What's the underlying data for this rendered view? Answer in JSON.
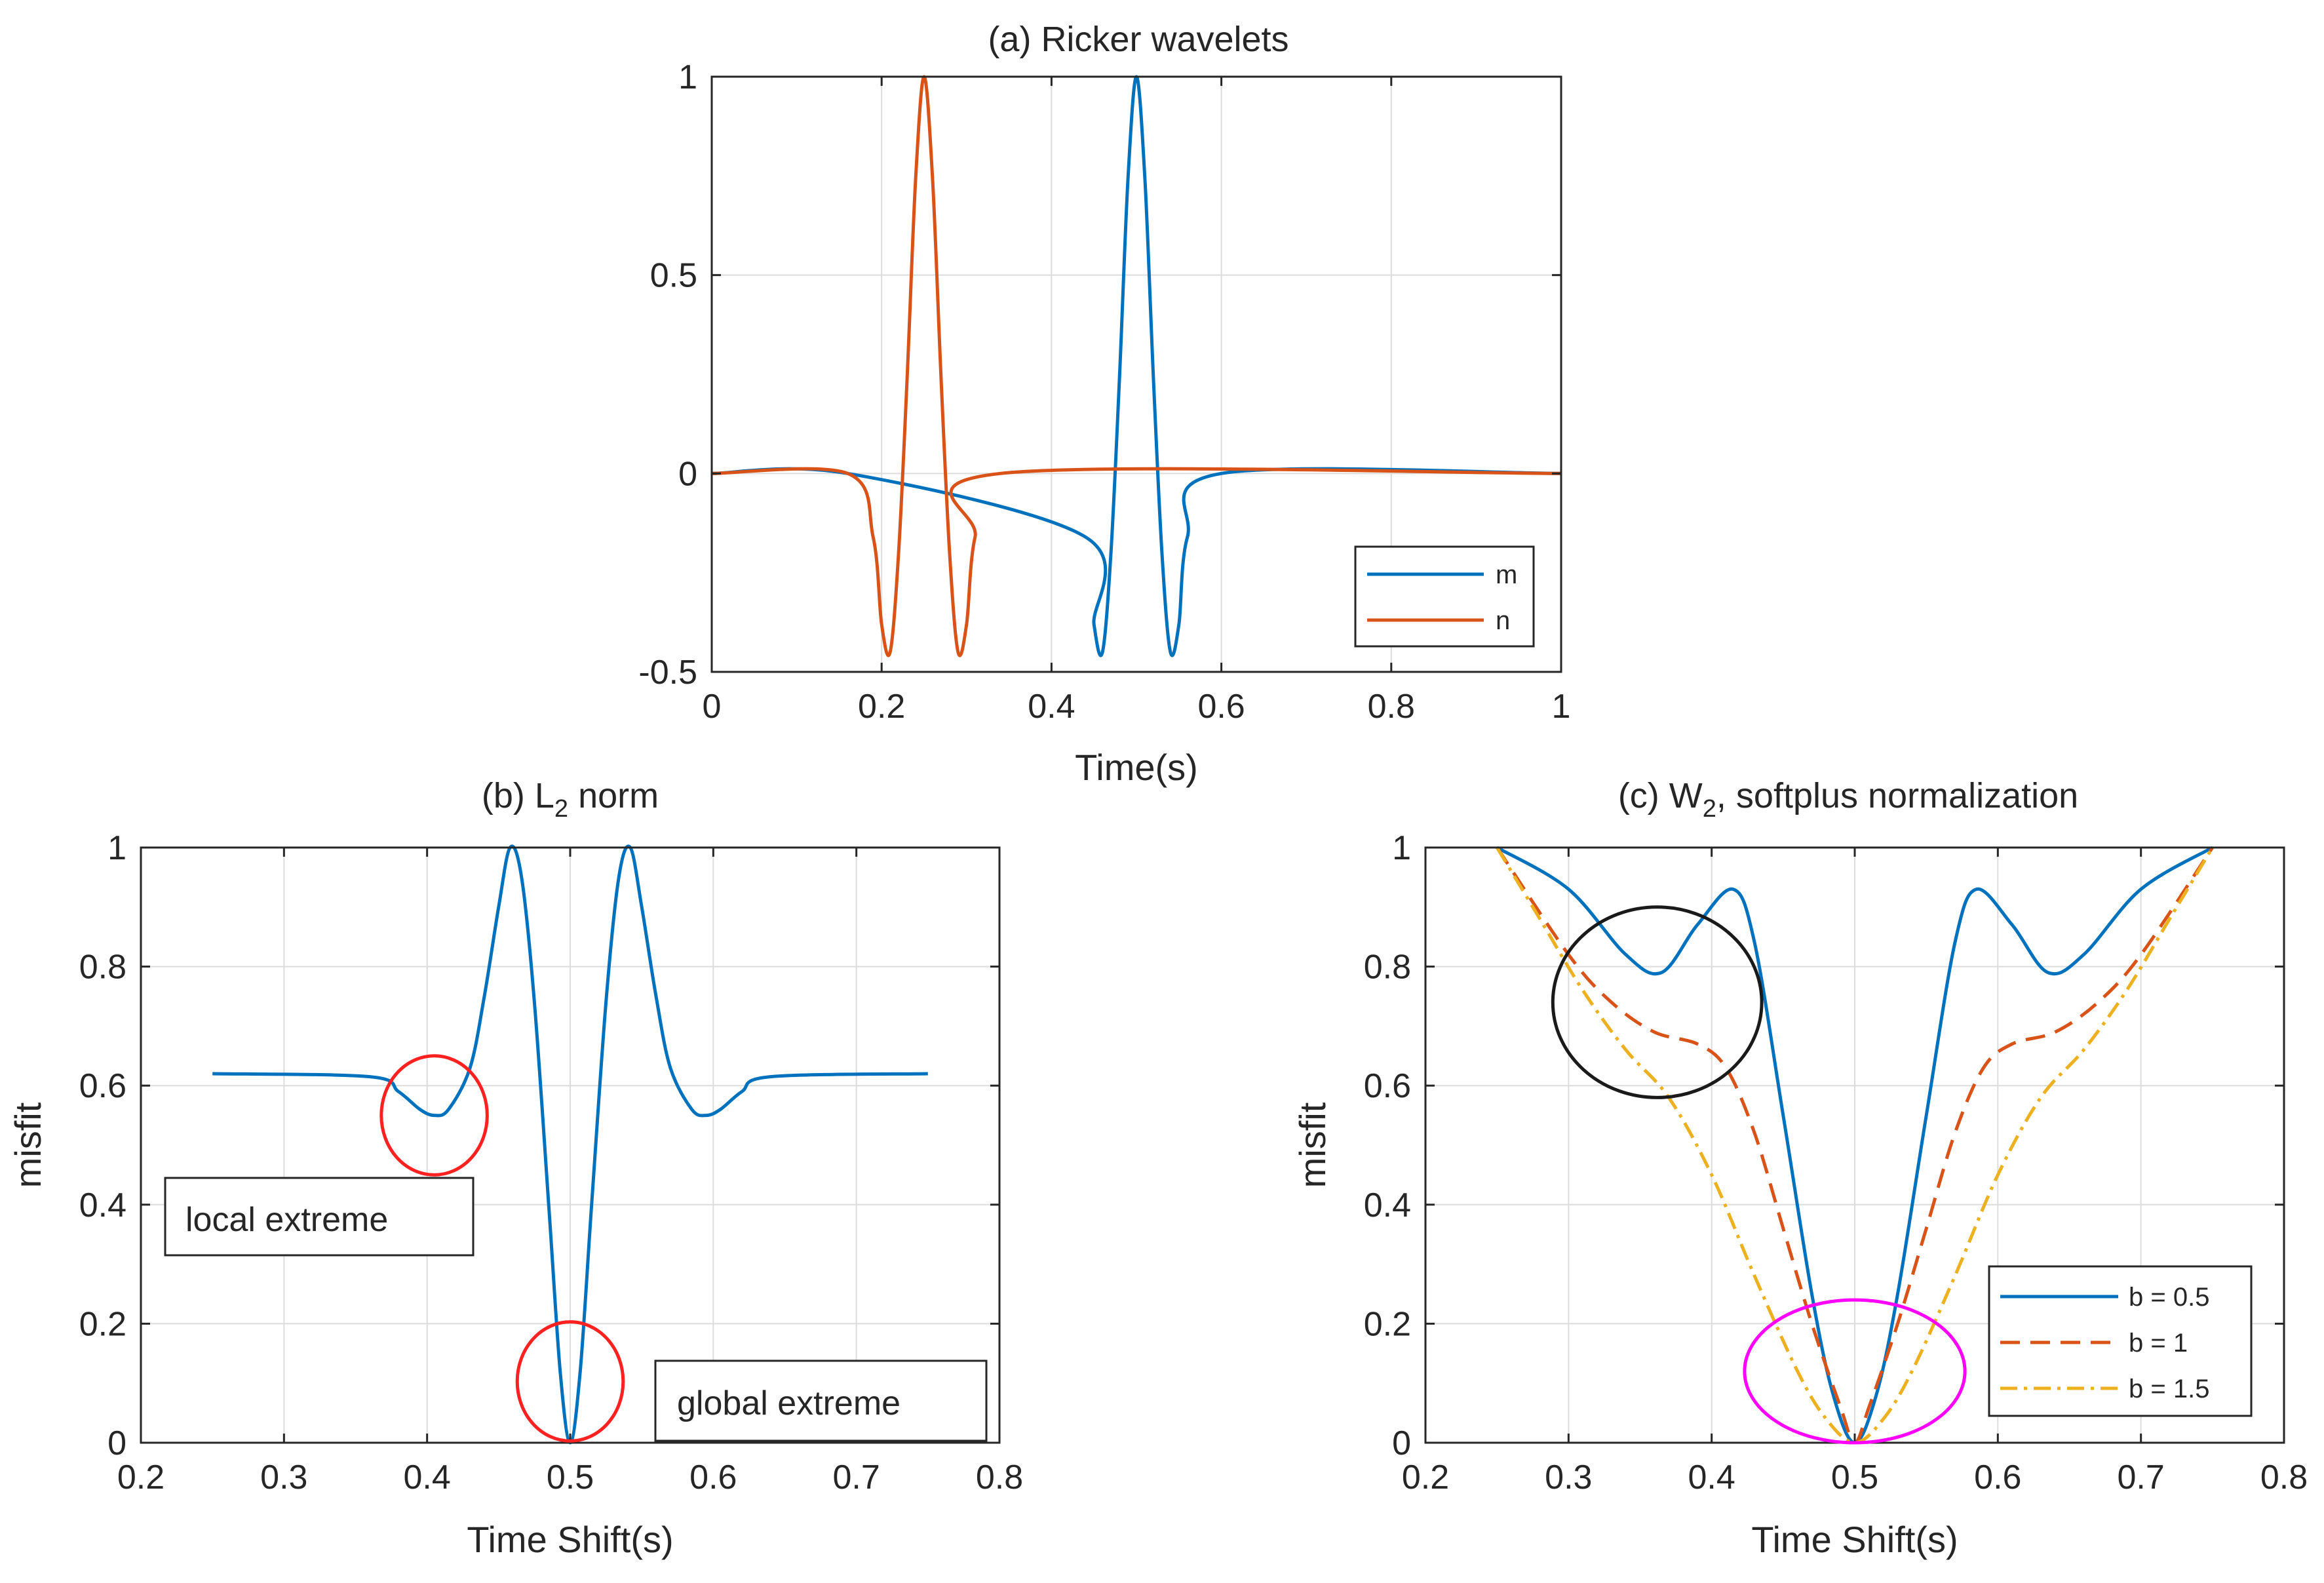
{
  "colors": {
    "blue": "#0072BD",
    "orange": "#D95319",
    "yellow": "#EDB120",
    "red": "#FF2020",
    "black": "#1a1a1a",
    "magenta": "#FF00FF",
    "axis": "#262626",
    "grid": "#dcdcdc"
  },
  "chart_data": [
    {
      "id": "a",
      "type": "line",
      "title": "(a) Ricker wavelets",
      "xlabel": "Time(s)",
      "ylabel": "",
      "xlim": [
        0,
        1
      ],
      "ylim": [
        -0.5,
        1
      ],
      "xticks": [
        0,
        0.2,
        0.4,
        0.6,
        0.8,
        1
      ],
      "xtick_labels": [
        "0",
        "0.2",
        "0.4",
        "0.6",
        "0.8",
        "1"
      ],
      "yticks": [
        -0.5,
        0,
        0.5,
        1
      ],
      "ytick_labels": [
        "-0.5",
        "0",
        "0.5",
        "1"
      ],
      "grid": true,
      "legend_position": "bottom-right",
      "series": [
        {
          "name": "m",
          "color": "blue",
          "style": "solid",
          "x": [
            0,
            0.16,
            0.44,
            0.45,
            0.46,
            0.47,
            0.48,
            0.49,
            0.5,
            0.51,
            0.52,
            0.53,
            0.54,
            0.55,
            0.56,
            0.6,
            1
          ],
          "y": [
            0,
            0,
            -0.16,
            -0.38,
            -0.45,
            -0.2,
            0.24,
            0.74,
            1,
            0.74,
            0.24,
            -0.2,
            -0.45,
            -0.38,
            -0.16,
            0,
            0
          ]
        },
        {
          "name": "n",
          "color": "orange",
          "style": "solid",
          "x": [
            0,
            0.16,
            0.19,
            0.2,
            0.21,
            0.22,
            0.23,
            0.24,
            0.25,
            0.26,
            0.27,
            0.28,
            0.29,
            0.3,
            0.31,
            0.34,
            1
          ],
          "y": [
            0,
            0,
            -0.16,
            -0.38,
            -0.45,
            -0.2,
            0.24,
            0.74,
            1,
            0.74,
            0.24,
            -0.2,
            -0.45,
            -0.38,
            -0.16,
            0,
            0
          ]
        }
      ]
    },
    {
      "id": "b",
      "type": "line",
      "title": "(b) L",
      "title_sub": "2",
      "title_rest": " norm",
      "xlabel": "Time Shift(s)",
      "ylabel": "misfit",
      "xlim": [
        0.2,
        0.8
      ],
      "ylim": [
        0,
        1
      ],
      "xticks": [
        0.2,
        0.3,
        0.4,
        0.5,
        0.6,
        0.7,
        0.8
      ],
      "xtick_labels": [
        "0.2",
        "0.3",
        "0.4",
        "0.5",
        "0.6",
        "0.7",
        "0.8"
      ],
      "yticks": [
        0,
        0.2,
        0.4,
        0.6,
        0.8,
        1
      ],
      "ytick_labels": [
        "0",
        "0.2",
        "0.4",
        "0.6",
        "0.8",
        "1"
      ],
      "grid": true,
      "series": [
        {
          "name": "L2",
          "color": "blue",
          "style": "solid",
          "x": [
            0.25,
            0.36,
            0.38,
            0.395,
            0.405,
            0.415,
            0.43,
            0.44,
            0.45,
            0.458,
            0.466,
            0.475,
            0.485,
            0.493,
            0.5,
            0.507,
            0.515,
            0.525,
            0.534,
            0.542,
            0.55,
            0.56,
            0.57,
            0.585,
            0.595,
            0.605,
            0.62,
            0.64,
            0.75
          ],
          "y": [
            0.62,
            0.615,
            0.59,
            0.56,
            0.55,
            0.56,
            0.63,
            0.75,
            0.9,
            1,
            0.95,
            0.74,
            0.4,
            0.12,
            0,
            0.12,
            0.4,
            0.74,
            0.95,
            1,
            0.9,
            0.75,
            0.63,
            0.56,
            0.55,
            0.56,
            0.59,
            0.615,
            0.62
          ]
        }
      ],
      "annotations": [
        {
          "text": "local extreme",
          "shape": "box"
        },
        {
          "text": "global extreme",
          "shape": "box"
        },
        {
          "shape": "ellipse",
          "cx": 0.405,
          "cy": 0.55,
          "rx": 0.037,
          "ry": 0.1,
          "color": "red"
        },
        {
          "shape": "ellipse",
          "cx": 0.5,
          "cy": 0.103,
          "rx": 0.037,
          "ry": 0.1,
          "color": "red"
        }
      ]
    },
    {
      "id": "c",
      "type": "line",
      "title": "(c) W",
      "title_sub": "2",
      "title_rest": ", softplus normalization",
      "xlabel": "Time Shift(s)",
      "ylabel": "misfit",
      "xlim": [
        0.2,
        0.8
      ],
      "ylim": [
        0,
        1
      ],
      "xticks": [
        0.2,
        0.3,
        0.4,
        0.5,
        0.6,
        0.7,
        0.8
      ],
      "xtick_labels": [
        "0.2",
        "0.3",
        "0.4",
        "0.5",
        "0.6",
        "0.7",
        "0.8"
      ],
      "yticks": [
        0,
        0.2,
        0.4,
        0.6,
        0.8,
        1
      ],
      "ytick_labels": [
        "0",
        "0.2",
        "0.4",
        "0.6",
        "0.8",
        "1"
      ],
      "grid": true,
      "legend_position": "bottom-right",
      "series": [
        {
          "name": "b = 0.5",
          "color": "blue",
          "style": "solid",
          "x": [
            0.25,
            0.3,
            0.34,
            0.365,
            0.39,
            0.415,
            0.43,
            0.45,
            0.47,
            0.485,
            0.5,
            0.515,
            0.53,
            0.55,
            0.57,
            0.585,
            0.61,
            0.635,
            0.66,
            0.7,
            0.75
          ],
          "y": [
            1,
            0.93,
            0.82,
            0.79,
            0.87,
            0.93,
            0.84,
            0.55,
            0.25,
            0.08,
            0,
            0.08,
            0.25,
            0.55,
            0.84,
            0.93,
            0.87,
            0.79,
            0.82,
            0.93,
            1
          ]
        },
        {
          "name": "b = 1",
          "color": "orange",
          "style": "dashed",
          "x": [
            0.25,
            0.3,
            0.33,
            0.36,
            0.39,
            0.41,
            0.43,
            0.45,
            0.47,
            0.49,
            0.5,
            0.51,
            0.53,
            0.55,
            0.57,
            0.59,
            0.61,
            0.64,
            0.67,
            0.7,
            0.75
          ],
          "y": [
            1,
            0.82,
            0.74,
            0.69,
            0.67,
            0.63,
            0.52,
            0.36,
            0.2,
            0.06,
            0,
            0.06,
            0.2,
            0.36,
            0.52,
            0.63,
            0.67,
            0.69,
            0.74,
            0.82,
            1
          ]
        },
        {
          "name": "b = 1.5",
          "color": "yellow",
          "style": "dashdot",
          "x": [
            0.25,
            0.28,
            0.31,
            0.34,
            0.37,
            0.4,
            0.43,
            0.46,
            0.48,
            0.5,
            0.52,
            0.54,
            0.57,
            0.6,
            0.63,
            0.66,
            0.69,
            0.72,
            0.75
          ],
          "y": [
            1,
            0.88,
            0.76,
            0.66,
            0.58,
            0.45,
            0.28,
            0.12,
            0.04,
            0,
            0.04,
            0.12,
            0.28,
            0.45,
            0.58,
            0.66,
            0.76,
            0.88,
            1
          ]
        }
      ],
      "annotations": [
        {
          "shape": "ellipse",
          "cx": 0.362,
          "cy": 0.74,
          "rx": 0.073,
          "ry": 0.16,
          "color": "black"
        },
        {
          "shape": "ellipse",
          "cx": 0.5,
          "cy": 0.12,
          "rx": 0.077,
          "ry": 0.12,
          "color": "magenta"
        }
      ]
    }
  ]
}
